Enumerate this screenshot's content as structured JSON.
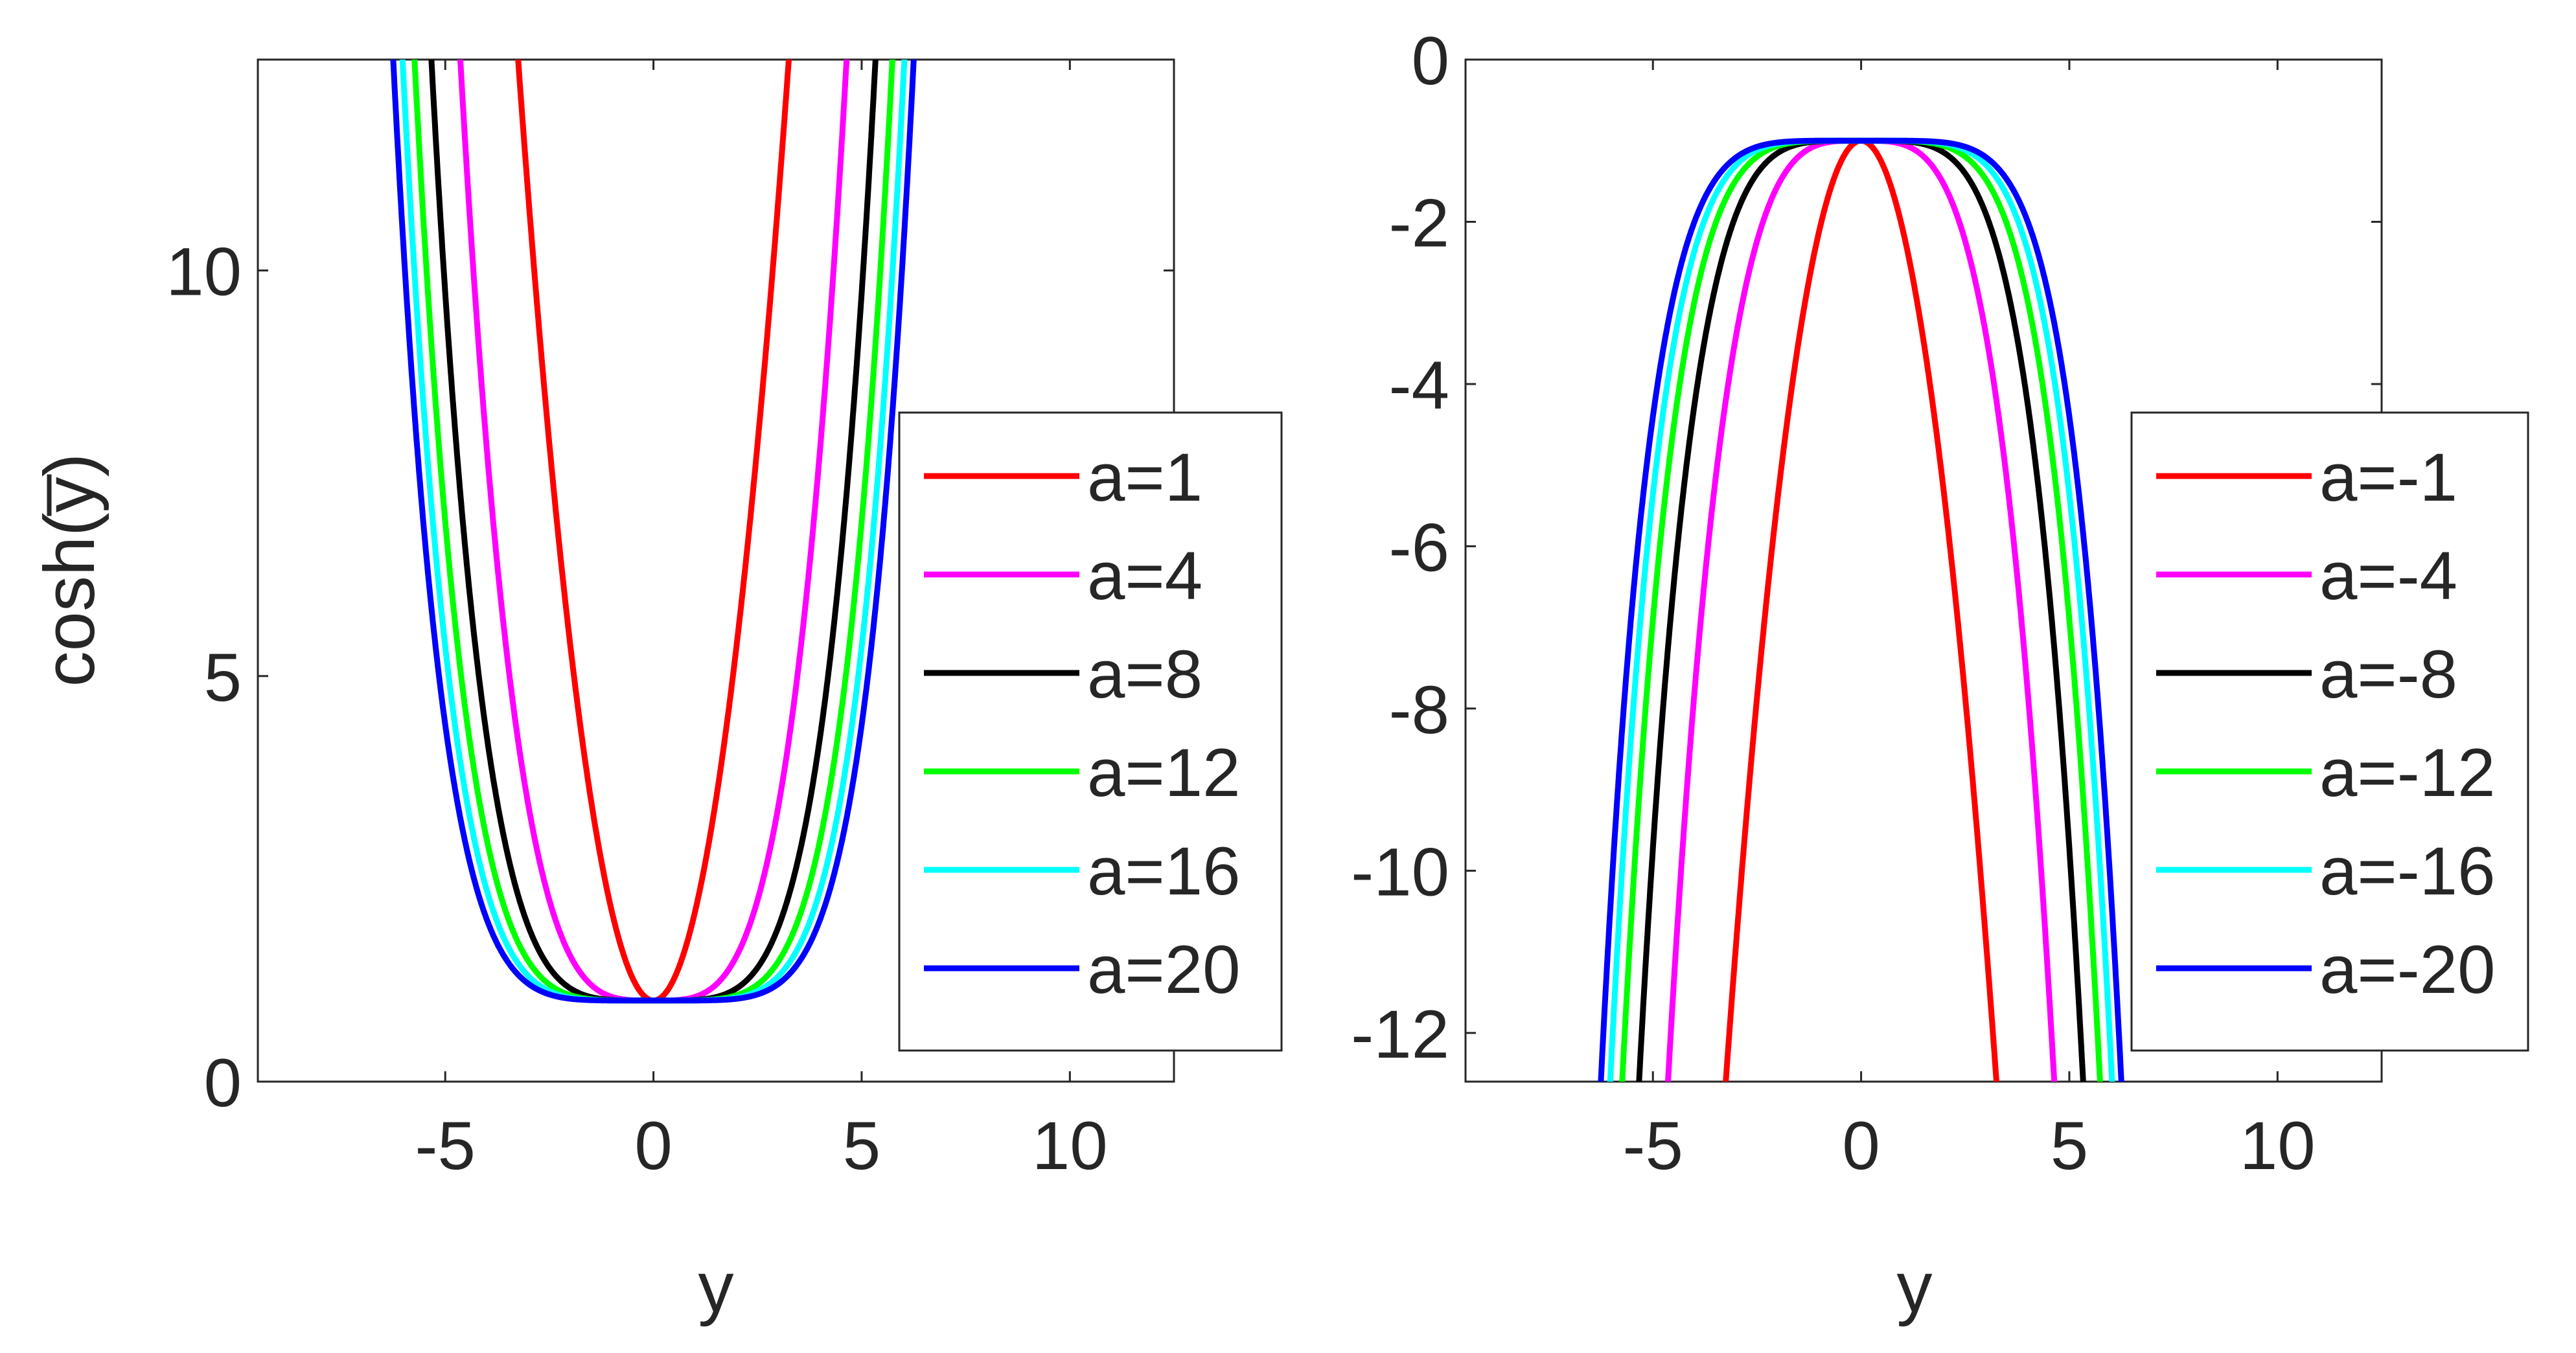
{
  "chart_data": [
    {
      "type": "line",
      "title": "",
      "xlabel": "y",
      "ylabel": "cosh(y̅)",
      "xlim": [
        -9.5,
        12.5
      ],
      "ylim": [
        0,
        12.6
      ],
      "xticks": [
        -5,
        0,
        5,
        10
      ],
      "yticks": [
        0,
        5,
        10
      ],
      "xtick_labels": [
        "-5",
        "0",
        "5",
        "10"
      ],
      "ytick_labels": [
        "0",
        "5",
        "10"
      ],
      "legend_position": "right",
      "series": [
        {
          "name": "a=1",
          "a": 1,
          "color": "#ff0000"
        },
        {
          "name": "a=4",
          "a": 4,
          "color": "#ff00ff"
        },
        {
          "name": "a=8",
          "a": 8,
          "color": "#000000"
        },
        {
          "name": "a=12",
          "a": 12,
          "color": "#00ff00"
        },
        {
          "name": "a=16",
          "a": 16,
          "color": "#00ffff"
        },
        {
          "name": "a=20",
          "a": 20,
          "color": "#0000ff"
        }
      ]
    },
    {
      "type": "line",
      "title": "",
      "xlabel": "y",
      "ylabel": "",
      "xlim": [
        -9.5,
        12.5
      ],
      "ylim": [
        -12.6,
        0
      ],
      "xticks": [
        -5,
        0,
        5,
        10
      ],
      "yticks": [
        -12,
        -10,
        -8,
        -6,
        -4,
        -2,
        0
      ],
      "xtick_labels": [
        "-5",
        "0",
        "5",
        "10"
      ],
      "ytick_labels": [
        "-12",
        "-10",
        "-8",
        "-6",
        "-4",
        "-2",
        "0"
      ],
      "legend_position": "right",
      "series": [
        {
          "name": "a=-1",
          "a": -1,
          "color": "#ff0000"
        },
        {
          "name": "a=-4",
          "a": -4,
          "color": "#ff00ff"
        },
        {
          "name": "a=-8",
          "a": -8,
          "color": "#000000"
        },
        {
          "name": "a=-12",
          "a": -12,
          "color": "#00ff00"
        },
        {
          "name": "a=-16",
          "a": -16,
          "color": "#00ffff"
        },
        {
          "name": "a=-20",
          "a": -20,
          "color": "#0000ff"
        }
      ]
    }
  ]
}
